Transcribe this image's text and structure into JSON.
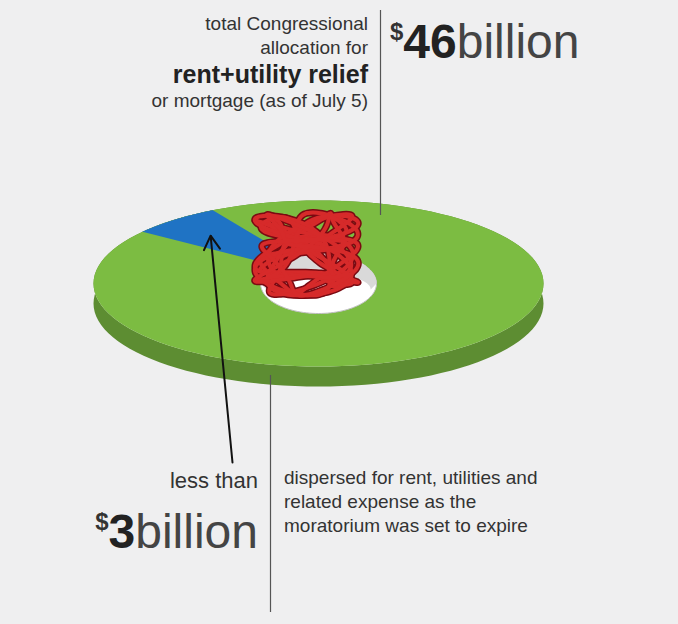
{
  "chart_data": {
    "type": "pie",
    "tick_labels": false,
    "total": {
      "value": 46,
      "currency": "$",
      "unit": "billion",
      "color": "#7cbc42",
      "label": "total Congressional allocation for",
      "label_bold": "rent+utility relief",
      "label_end": "or mortgage (as of July 5)"
    },
    "part": {
      "value": 3,
      "qualifier": "less than",
      "currency": "$",
      "unit": "billion",
      "color": "#1f73c4",
      "label": "dispersed for rent, utilities and related expense as the moratorium was set to expire"
    }
  }
}
